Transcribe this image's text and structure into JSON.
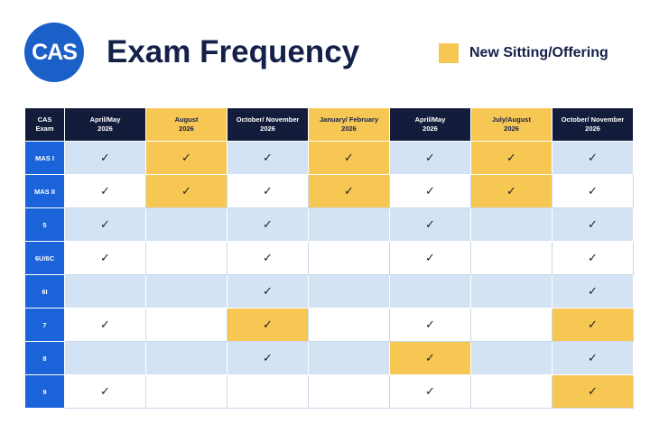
{
  "logo": {
    "text": "CAS"
  },
  "title": "Exam Frequency",
  "legend": {
    "label": "New Sitting/Offering",
    "color": "#f7c754"
  },
  "table": {
    "corner": [
      "CAS",
      "Exam"
    ],
    "columns": [
      {
        "line1": "April/May",
        "line2": "2026",
        "new": false
      },
      {
        "line1": "August",
        "line2": "2026",
        "new": true
      },
      {
        "line1": "October/ November",
        "line2": "2026",
        "new": false
      },
      {
        "line1": "January/ February",
        "line2": "2026",
        "new": true
      },
      {
        "line1": "April/May",
        "line2": "2026",
        "new": false
      },
      {
        "line1": "July/August",
        "line2": "2026",
        "new": true
      },
      {
        "line1": "October/ November",
        "line2": "2026",
        "new": false
      }
    ],
    "rows": [
      {
        "exam": "MAS I",
        "checks": [
          1,
          1,
          1,
          1,
          1,
          1,
          1
        ],
        "new": [
          0,
          1,
          0,
          1,
          0,
          1,
          0
        ]
      },
      {
        "exam": "MAS II",
        "checks": [
          1,
          1,
          1,
          1,
          1,
          1,
          1
        ],
        "new": [
          0,
          1,
          0,
          1,
          0,
          1,
          0
        ]
      },
      {
        "exam": "5",
        "checks": [
          1,
          0,
          1,
          0,
          1,
          0,
          1
        ],
        "new": [
          0,
          0,
          0,
          0,
          0,
          0,
          0
        ]
      },
      {
        "exam": "6U/6C",
        "checks": [
          1,
          0,
          1,
          0,
          1,
          0,
          1
        ],
        "new": [
          0,
          0,
          0,
          0,
          0,
          0,
          0
        ]
      },
      {
        "exam": "6I",
        "checks": [
          0,
          0,
          1,
          0,
          0,
          0,
          1
        ],
        "new": [
          0,
          0,
          0,
          0,
          0,
          0,
          0
        ]
      },
      {
        "exam": "7",
        "checks": [
          1,
          0,
          1,
          0,
          1,
          0,
          1
        ],
        "new": [
          0,
          0,
          1,
          0,
          0,
          0,
          1
        ]
      },
      {
        "exam": "8",
        "checks": [
          0,
          0,
          1,
          0,
          1,
          0,
          1
        ],
        "new": [
          0,
          0,
          0,
          0,
          1,
          0,
          0
        ]
      },
      {
        "exam": "9",
        "checks": [
          1,
          0,
          0,
          0,
          1,
          0,
          1
        ],
        "new": [
          0,
          0,
          0,
          0,
          0,
          0,
          1
        ]
      }
    ],
    "check_glyph": "✓"
  }
}
